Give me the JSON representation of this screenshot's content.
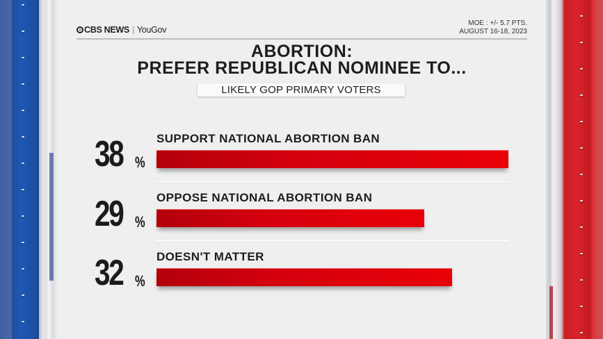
{
  "header": {
    "brand": "CBS NEWS",
    "partner": "YouGov",
    "separator": "|",
    "moe": "MOE : +/- 5.7 PTS.",
    "dates": "AUGUST 16-18, 2023"
  },
  "title_line1": "ABORTION:",
  "title_line2": "PREFER REPUBLICAN NOMINEE TO...",
  "subtitle": "LIKELY GOP PRIMARY VOTERS",
  "colors": {
    "bar": "#e80008",
    "bar_dark": "#b3000c",
    "frame_left": "#1f57b3",
    "frame_right": "#d8232b",
    "text": "#1d1d1d"
  },
  "rows": [
    {
      "pct": "38",
      "sign": "%",
      "label": "SUPPORT NATIONAL ABORTION BAN"
    },
    {
      "pct": "29",
      "sign": "%",
      "label": "OPPOSE NATIONAL ABORTION BAN"
    },
    {
      "pct": "32",
      "sign": "%",
      "label": "DOESN'T MATTER"
    }
  ],
  "chart_data": {
    "type": "bar",
    "orientation": "horizontal",
    "title": "ABORTION: PREFER REPUBLICAN NOMINEE TO...",
    "subtitle": "LIKELY GOP PRIMARY VOTERS",
    "categories": [
      "SUPPORT NATIONAL ABORTION BAN",
      "OPPOSE NATIONAL ABORTION BAN",
      "DOESN'T MATTER"
    ],
    "values": [
      38,
      29,
      32
    ],
    "unit": "%",
    "xlabel": "",
    "ylabel": "",
    "grid": false,
    "legend": null,
    "source": "CBS NEWS | YouGov",
    "annotations": [
      "MOE : +/- 5.7 PTS.",
      "AUGUST 16-18, 2023"
    ]
  }
}
